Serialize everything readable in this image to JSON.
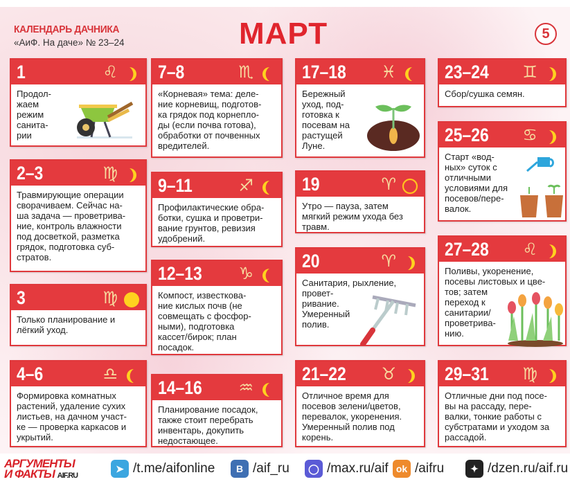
{
  "header": {
    "kicker": "КАЛЕНДАРЬ ДАЧНИКА",
    "source": "«АиФ. На даче» № 23–24",
    "month": "МАРТ",
    "page_number": "5"
  },
  "colors": {
    "accent": "#e43a3e",
    "moon": "#ffd21f",
    "zodiac": "#f7dca0"
  },
  "cards": [
    {
      "days": "1",
      "sign": "leo",
      "glyph": "♌︎",
      "moon": "waxing",
      "text": "Продол-\nжаем\nрежим\nсанита-\nрии",
      "illustration": "wheelbarrow"
    },
    {
      "days": "2–3",
      "sign": "virgo",
      "glyph": "♍︎",
      "moon": "waxing",
      "text": "Травмирующие операции\nсворачиваем. Сейчас на-\nша задача — проветрива-\nние, контроль влажности\nпод досветкой, разметка\nгрядок, подготовка суб-\nстратов."
    },
    {
      "days": "3",
      "sign": "virgo",
      "glyph": "♍︎",
      "moon": "full",
      "text": "Только планирование и\nлёгкий уход."
    },
    {
      "days": "4–6",
      "sign": "libra",
      "glyph": "♎︎",
      "moon": "waning",
      "text": "Формировка комнатных\nрастений, удаление сухих\nлистьев, на дачном участ-\nке — проверка каркасов и\nукрытий."
    },
    {
      "days": "7–8",
      "sign": "scorpio",
      "glyph": "♏︎",
      "moon": "waning",
      "text": "«Корневая» тема: деле-\nние корневищ, подготов-\nка грядок под корнепло-\nды (если почва готова),\nобработки от почвенных\nвредителей."
    },
    {
      "days": "9–11",
      "sign": "sagittarius",
      "glyph": "♐︎",
      "moon": "waning",
      "text": "Профилактические обра-\nботки, сушка и проветри-\nвание грунтов, ревизия\nудобрений."
    },
    {
      "days": "12–13",
      "sign": "capricorn",
      "glyph": "♑︎",
      "moon": "waning",
      "text": "Компост, известкова-\nние кислых почв (не\nсовмещать с фосфор-\nными), подготовка\nкассет/бирок; план\nпосадок."
    },
    {
      "days": "14–16",
      "sign": "aquarius",
      "glyph": "♒︎",
      "moon": "waning",
      "text": "Планирование посадок,\nтакже стоит перебрать\nинвентарь, докупить\nнедостающее."
    },
    {
      "days": "17–18",
      "sign": "pisces",
      "glyph": "♓︎",
      "moon": "waning",
      "text": "Бережный\nуход, под-\nготовка к\nпосевам на\nрастущей\nЛуне.",
      "illustration": "sprout"
    },
    {
      "days": "19",
      "sign": "aries",
      "glyph": "♈︎",
      "moon": "new",
      "text": "Утро — пауза, затем\nмягкий режим ухода без\nтравм."
    },
    {
      "days": "20",
      "sign": "aries",
      "glyph": "♈︎",
      "moon": "waxing",
      "text": "Санитария, рыхление,\nпровет-\nривание.\nУмеренный\nполив.",
      "illustration": "rake"
    },
    {
      "days": "21–22",
      "sign": "taurus",
      "glyph": "♉︎",
      "moon": "waxing",
      "text": "Отличное время для\nпосевов зелени/цветов,\nперевалок, укоренения.\nУмеренный полив под\nкорень."
    },
    {
      "days": "23–24",
      "sign": "gemini",
      "glyph": "♊︎",
      "moon": "waxing",
      "text": "Сбор/сушка семян."
    },
    {
      "days": "25–26",
      "sign": "cancer",
      "glyph": "♋︎",
      "moon": "waxing",
      "text": "Старт «вод-\nных» суток с\nотличными\nусловиями для\nпосевов/пере-\nвалок.",
      "illustration": "watering-can-pots"
    },
    {
      "days": "27–28",
      "sign": "leo",
      "glyph": "♌︎",
      "moon": "waxing",
      "text": "Поливы, укоренение,\nпосевы листовых и цве-\nтов; затем\nпереход к\nсанитарии/\nпроветрива-\nнию.",
      "illustration": "tulips"
    },
    {
      "days": "29–31",
      "sign": "virgo",
      "glyph": "♍︎",
      "moon": "waxing",
      "text": "Отличные дни под посе-\nвы на рассаду, пере-\nвалки, тонкие работы с\nсубстратами и уходом за\nрассадой."
    }
  ],
  "footer": {
    "logo_line1": "АРГУМЕНТЫ",
    "logo_line2": "И ФАКТЫ",
    "logo_site": "AIF.RU",
    "links": [
      {
        "icon": "telegram-icon",
        "label": "/t.me/aifonline",
        "color": "#3ba6e0"
      },
      {
        "icon": "vk-icon",
        "label": "/aif_ru",
        "color": "#3f6fb3"
      },
      {
        "icon": "max-icon",
        "label": "/max.ru/aif",
        "color": "#5b5bd6"
      },
      {
        "icon": "odnoklassniki-icon",
        "label": "/aifru",
        "color": "#ee8a2c"
      },
      {
        "icon": "dzen-icon",
        "label": "/dzen.ru/aif.ru",
        "color": "#222222"
      }
    ]
  }
}
